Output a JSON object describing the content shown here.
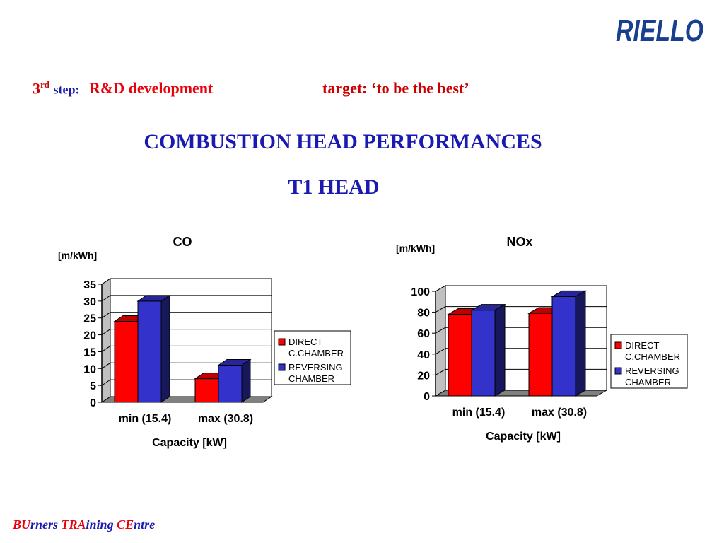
{
  "logo": {
    "text": "RIELLO",
    "color": "#1a3f8f"
  },
  "step": {
    "number": "3",
    "ordinal_suffix": "rd",
    "word": "step:",
    "development": "R&D development",
    "target": "target: ‘to be the best’"
  },
  "main_title": "COMBUSTION HEAD PERFORMANCES",
  "sub_title": "T1 HEAD",
  "footer": [
    {
      "text": "BU",
      "style": "cap"
    },
    {
      "text": "rners ",
      "style": "rest"
    },
    {
      "text": "TRA",
      "style": "cap"
    },
    {
      "text": "ining ",
      "style": "rest"
    },
    {
      "text": "CE",
      "style": "cap"
    },
    {
      "text": "ntre",
      "style": "rest"
    }
  ],
  "colors": {
    "series_direct": "#ff0000",
    "series_reversing": "#3333cc",
    "title_blue": "#1a1ab0",
    "accent_red": "#e8000b"
  },
  "chart_data": [
    {
      "type": "bar",
      "title": "CO",
      "unit_label": "[m/kWh]",
      "xlabel": "Capacity [kW]",
      "categories": [
        "min (15.4)",
        "max (30.8)"
      ],
      "ylim": [
        0,
        35
      ],
      "yticks": [
        0,
        5,
        10,
        15,
        20,
        25,
        30,
        35
      ],
      "grid": true,
      "legend_position": "right",
      "series": [
        {
          "name": "DIRECT C.CHAMBER",
          "legend_lines": [
            "DIRECT",
            "C.CHAMBER"
          ],
          "color": "#ff0000",
          "values": [
            24,
            7
          ]
        },
        {
          "name": "REVERSING CHAMBER",
          "legend_lines": [
            "REVERSING",
            "CHAMBER"
          ],
          "color": "#3333cc",
          "values": [
            30,
            11
          ]
        }
      ]
    },
    {
      "type": "bar",
      "title": "NOx",
      "unit_label": "[m/kWh]",
      "xlabel": "Capacity [kW]",
      "categories": [
        "min (15.4)",
        "max (30.8)"
      ],
      "ylim": [
        0,
        100
      ],
      "yticks": [
        0,
        20,
        40,
        60,
        80,
        100
      ],
      "grid": true,
      "legend_position": "right",
      "series": [
        {
          "name": "DIRECT C.CHAMBER",
          "legend_lines": [
            "DIRECT",
            "C.CHAMBER"
          ],
          "color": "#ff0000",
          "values": [
            78,
            79
          ]
        },
        {
          "name": "REVERSING CHAMBER",
          "legend_lines": [
            "REVERSING",
            "CHAMBER"
          ],
          "color": "#3333cc",
          "values": [
            82,
            95
          ]
        }
      ]
    }
  ]
}
